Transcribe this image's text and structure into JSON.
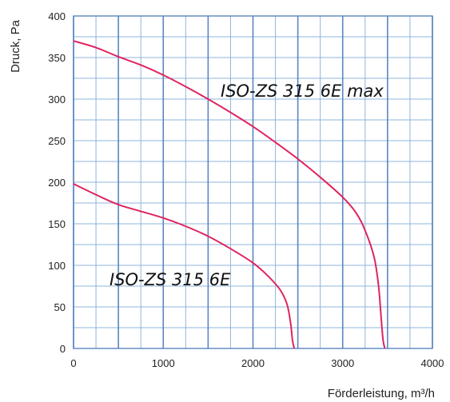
{
  "chart_data": {
    "type": "line",
    "xlabel": "Förderleistung, m³/h",
    "ylabel": "Druck, Pa",
    "xlim": [
      0,
      4000
    ],
    "ylim": [
      0,
      400
    ],
    "x_ticks": [
      0,
      1000,
      2000,
      3000,
      4000
    ],
    "y_ticks": [
      0,
      50,
      100,
      150,
      200,
      250,
      300,
      350,
      400
    ],
    "grid": true,
    "series_color": "#e0245e",
    "grid_minor_color": "#8fb4dd",
    "grid_major_color": "#5b86c2",
    "series": [
      {
        "name": "ISO-ZS 315 6E max",
        "x": [
          0,
          250,
          500,
          750,
          1000,
          1250,
          1500,
          1750,
          2000,
          2250,
          2500,
          2750,
          3000,
          3150,
          3250,
          3350,
          3400,
          3430,
          3450,
          3470
        ],
        "y": [
          370,
          362,
          351,
          341,
          329,
          315,
          300,
          284,
          267,
          248,
          228,
          206,
          182,
          163,
          142,
          110,
          75,
          35,
          10,
          0
        ]
      },
      {
        "name": "ISO-ZS 315 6E",
        "x": [
          0,
          250,
          500,
          750,
          1000,
          1250,
          1500,
          1750,
          2000,
          2150,
          2300,
          2380,
          2420,
          2440,
          2460
        ],
        "y": [
          198,
          185,
          173,
          165,
          157,
          147,
          135,
          120,
          103,
          89,
          71,
          53,
          30,
          10,
          0
        ]
      }
    ]
  }
}
